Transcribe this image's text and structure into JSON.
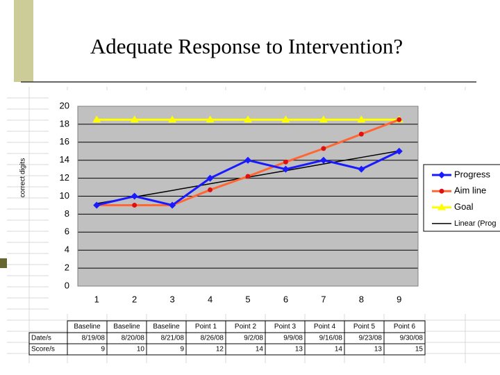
{
  "title": "Adequate Response to Intervention?",
  "chart_data": {
    "type": "line",
    "y_label": "correct digits",
    "categories": [
      "1",
      "2",
      "3",
      "4",
      "5",
      "6",
      "7",
      "8",
      "9"
    ],
    "ylim": [
      0,
      20
    ],
    "yticks": [
      0,
      2,
      4,
      6,
      8,
      10,
      12,
      14,
      16,
      18,
      20
    ],
    "grid": true,
    "legend": "right",
    "series": [
      {
        "name": "Progress",
        "color": "#1a1aff",
        "marker": "diamond",
        "values": [
          9,
          10,
          9,
          12,
          14,
          13,
          14,
          13,
          15
        ]
      },
      {
        "name": "Aim line",
        "color": "#ff6633",
        "marker_color": "#e01010",
        "marker": "circle",
        "values": [
          9,
          9,
          9,
          10.7,
          12.2,
          13.8,
          15.3,
          16.9,
          18.5
        ]
      },
      {
        "name": "Goal",
        "color": "#ffff00",
        "marker": "triangle",
        "values": [
          18.5,
          18.5,
          18.5,
          18.5,
          18.5,
          18.5,
          18.5,
          18.5,
          18.5
        ]
      },
      {
        "name": "Linear (Prog",
        "color": "#000000",
        "marker": "none",
        "values": [
          9.18,
          9.91,
          10.64,
          11.38,
          12.11,
          12.84,
          13.58,
          14.31,
          15.04
        ]
      }
    ],
    "table": {
      "row_labels": [
        "Date/s",
        "Score/s"
      ],
      "header": [
        "Baseline",
        "Baseline",
        "Baseline",
        "Point 1",
        "Point 2",
        "Point 3",
        "Point 4",
        "Point 5",
        "Point 6"
      ],
      "dates": [
        "8/19/08",
        "8/20/08",
        "8/21/08",
        "8/26/08",
        "9/2/08",
        "9/9/08",
        "9/16/08",
        "9/23/08",
        "9/30/08"
      ]
    }
  }
}
